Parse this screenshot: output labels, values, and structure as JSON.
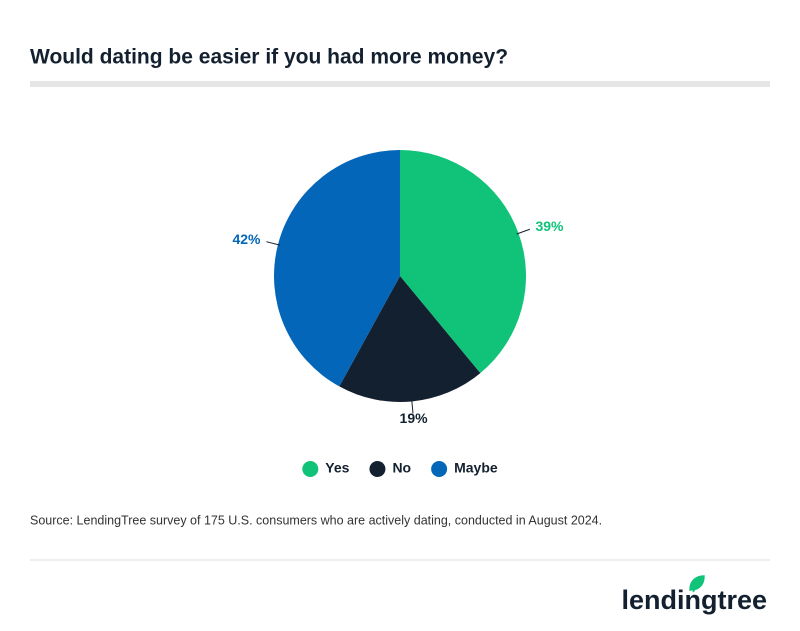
{
  "chart_data": {
    "type": "pie",
    "title": "Would dating be easier if you had more money?",
    "categories": [
      "Yes",
      "No",
      "Maybe"
    ],
    "values": [
      39,
      19,
      42
    ],
    "value_labels": [
      "39%",
      "19%",
      "42%"
    ],
    "colors": [
      "#10c379",
      "#13202f",
      "#0466b8"
    ],
    "legend": "bottom",
    "source": "Source: LendingTree survey of 175 U.S. consumers who are actively dating, conducted in August 2024.",
    "brand": "lendingtree"
  }
}
